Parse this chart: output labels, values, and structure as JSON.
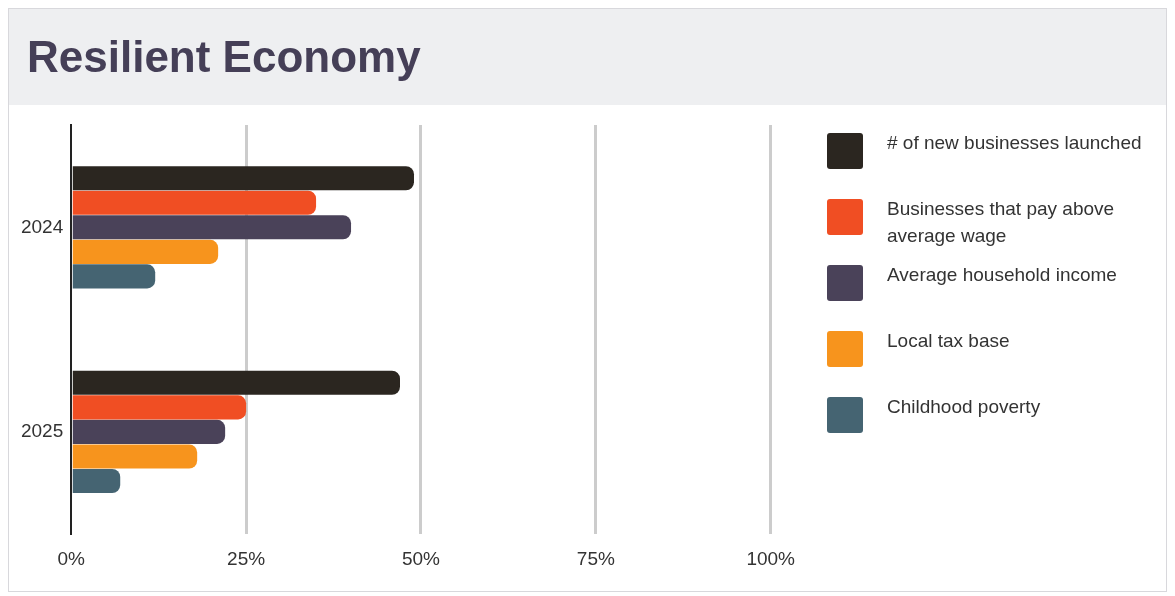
{
  "chart_data": {
    "type": "bar",
    "orientation": "horizontal",
    "title": "Resilient Economy",
    "categories": [
      "2024",
      "2025"
    ],
    "series": [
      {
        "name": "# of new businesses launched",
        "color": "#2b2620",
        "values": [
          49,
          47
        ]
      },
      {
        "name": "Businesses that pay above average wage",
        "color": "#f04e23",
        "values": [
          35,
          25
        ]
      },
      {
        "name": "Average household income",
        "color": "#4a4259",
        "values": [
          40,
          22
        ]
      },
      {
        "name": "Local tax base",
        "color": "#f7941d",
        "values": [
          21,
          18
        ]
      },
      {
        "name": "Childhood poverty",
        "color": "#456472",
        "values": [
          12,
          7
        ]
      }
    ],
    "xlim": [
      0,
      100
    ],
    "xticks": [
      {
        "value": 0,
        "label": "0%"
      },
      {
        "value": 25,
        "label": "25%"
      },
      {
        "value": 50,
        "label": "50%"
      },
      {
        "value": 75,
        "label": "75%"
      },
      {
        "value": 100,
        "label": "100%"
      }
    ],
    "grid": "x",
    "legend": "right"
  }
}
